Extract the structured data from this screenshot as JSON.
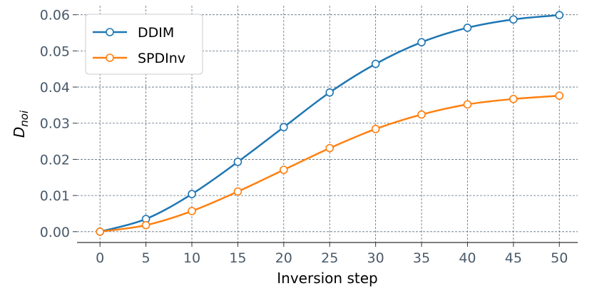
{
  "chart_data": {
    "type": "line",
    "title": "",
    "xlabel": "Inversion step",
    "ylabel_main": "D",
    "ylabel_sub": "noi",
    "x": [
      0,
      5,
      10,
      15,
      20,
      25,
      30,
      35,
      40,
      45,
      50
    ],
    "xticks": [
      "0",
      "5",
      "10",
      "15",
      "20",
      "25",
      "30",
      "35",
      "40",
      "45",
      "50"
    ],
    "yticks": [
      "0.00",
      "0.01",
      "0.02",
      "0.03",
      "0.04",
      "0.05",
      "0.06"
    ],
    "xlim": [
      -2.5,
      52
    ],
    "ylim": [
      -0.003,
      0.0625
    ],
    "grid": true,
    "legend_position": "top-left",
    "series": [
      {
        "name": "DDIM",
        "color": "#1f77b4",
        "values": [
          0.0,
          0.0035,
          0.0104,
          0.0193,
          0.0289,
          0.0385,
          0.0464,
          0.0524,
          0.0564,
          0.0587,
          0.0599
        ]
      },
      {
        "name": "SPDInv",
        "color": "#ff7f0e",
        "values": [
          0.0,
          0.0018,
          0.0057,
          0.0111,
          0.0171,
          0.0231,
          0.0284,
          0.0324,
          0.0352,
          0.0367,
          0.0376
        ]
      }
    ]
  }
}
